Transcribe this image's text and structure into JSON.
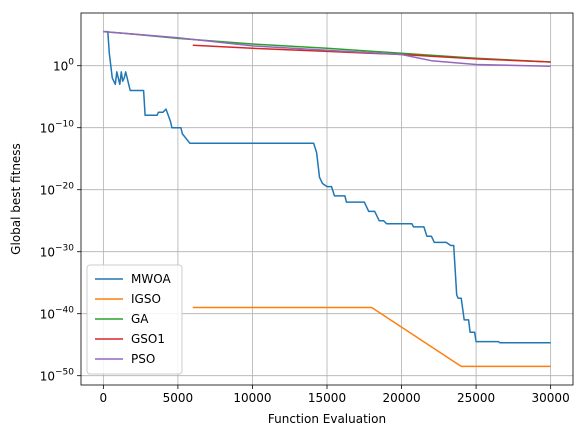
{
  "chart_data": {
    "type": "line",
    "xlabel": "Function Evaluation",
    "ylabel": "Global best fitness",
    "x_scale": "linear",
    "y_scale": "log",
    "xlim": [
      -1500,
      31500
    ],
    "ylim_log10": [
      -51.5,
      8.5
    ],
    "x_ticks": [
      0,
      5000,
      10000,
      15000,
      20000,
      25000,
      30000
    ],
    "x_tick_labels": [
      "0",
      "5000",
      "10000",
      "15000",
      "20000",
      "25000",
      "30000"
    ],
    "y_ticks_log10": [
      0,
      -10,
      -20,
      -30,
      -40,
      -50
    ],
    "y_tick_labels": [
      {
        "base": "10",
        "exp": "0"
      },
      {
        "base": "10",
        "exp": "−10"
      },
      {
        "base": "10",
        "exp": "−20"
      },
      {
        "base": "10",
        "exp": "−30"
      },
      {
        "base": "10",
        "exp": "−40"
      },
      {
        "base": "10",
        "exp": "−50"
      }
    ],
    "grid": true,
    "legend_position": "lower-left",
    "series": [
      {
        "name": "MWOA",
        "color": "#1f77b4",
        "points_log10": [
          [
            0,
            5.5
          ],
          [
            300,
            5.5
          ],
          [
            400,
            2
          ],
          [
            600,
            -2
          ],
          [
            800,
            -3
          ],
          [
            900,
            -1
          ],
          [
            1000,
            -2
          ],
          [
            1100,
            -3
          ],
          [
            1200,
            -1
          ],
          [
            1300,
            -2.5
          ],
          [
            1400,
            -2
          ],
          [
            1500,
            -1
          ],
          [
            1700,
            -3
          ],
          [
            1800,
            -4
          ],
          [
            2000,
            -4
          ],
          [
            2700,
            -4
          ],
          [
            2800,
            -8
          ],
          [
            3000,
            -8
          ],
          [
            3600,
            -8
          ],
          [
            3700,
            -7.5
          ],
          [
            4000,
            -7.5
          ],
          [
            4200,
            -7
          ],
          [
            4500,
            -9
          ],
          [
            4600,
            -10
          ],
          [
            5200,
            -10
          ],
          [
            5300,
            -11
          ],
          [
            5800,
            -12.5
          ],
          [
            14100,
            -12.5
          ],
          [
            14300,
            -14
          ],
          [
            14500,
            -18
          ],
          [
            14700,
            -19
          ],
          [
            15000,
            -19.5
          ],
          [
            15300,
            -19.5
          ],
          [
            15500,
            -21
          ],
          [
            16200,
            -21
          ],
          [
            16300,
            -22
          ],
          [
            17500,
            -22
          ],
          [
            17800,
            -23.5
          ],
          [
            18200,
            -23.5
          ],
          [
            18500,
            -25
          ],
          [
            18800,
            -25
          ],
          [
            19000,
            -25.5
          ],
          [
            20700,
            -25.5
          ],
          [
            20800,
            -26
          ],
          [
            21000,
            -26
          ],
          [
            21500,
            -26
          ],
          [
            21700,
            -27.5
          ],
          [
            22000,
            -27.5
          ],
          [
            22200,
            -28.5
          ],
          [
            23000,
            -28.5
          ],
          [
            23300,
            -29
          ],
          [
            23500,
            -29
          ],
          [
            23700,
            -37
          ],
          [
            23800,
            -37.5
          ],
          [
            24000,
            -37.5
          ],
          [
            24200,
            -41
          ],
          [
            24500,
            -41
          ],
          [
            24600,
            -43
          ],
          [
            24900,
            -43
          ],
          [
            25000,
            -44.5
          ],
          [
            26500,
            -44.5
          ],
          [
            26600,
            -44.7
          ],
          [
            30000,
            -44.7
          ]
        ]
      },
      {
        "name": "IGSO",
        "color": "#ff7f0e",
        "points_log10": [
          [
            6000,
            -39
          ],
          [
            18000,
            -39
          ],
          [
            24000,
            -48.5
          ],
          [
            30000,
            -48.5
          ]
        ]
      },
      {
        "name": "GA",
        "color": "#2ca02c",
        "points_log10": [
          [
            0,
            5.5
          ],
          [
            2000,
            5.1
          ],
          [
            5000,
            4.4
          ],
          [
            10000,
            3.5
          ],
          [
            15000,
            2.8
          ],
          [
            20000,
            2
          ],
          [
            25000,
            1.2
          ],
          [
            30000,
            0.6
          ]
        ]
      },
      {
        "name": "GSO1",
        "color": "#d62728",
        "points_log10": [
          [
            6000,
            3.3
          ],
          [
            10000,
            2.8
          ],
          [
            15000,
            2.3
          ],
          [
            20000,
            1.8
          ],
          [
            25000,
            1.1
          ],
          [
            30000,
            0.6
          ]
        ]
      },
      {
        "name": "PSO",
        "color": "#9467bd",
        "points_log10": [
          [
            0,
            5.5
          ],
          [
            5000,
            4.5
          ],
          [
            10000,
            3.2
          ],
          [
            15000,
            2.5
          ],
          [
            20000,
            1.8
          ],
          [
            22000,
            0.8
          ],
          [
            25000,
            0.2
          ],
          [
            30000,
            -0.1
          ]
        ]
      }
    ]
  }
}
